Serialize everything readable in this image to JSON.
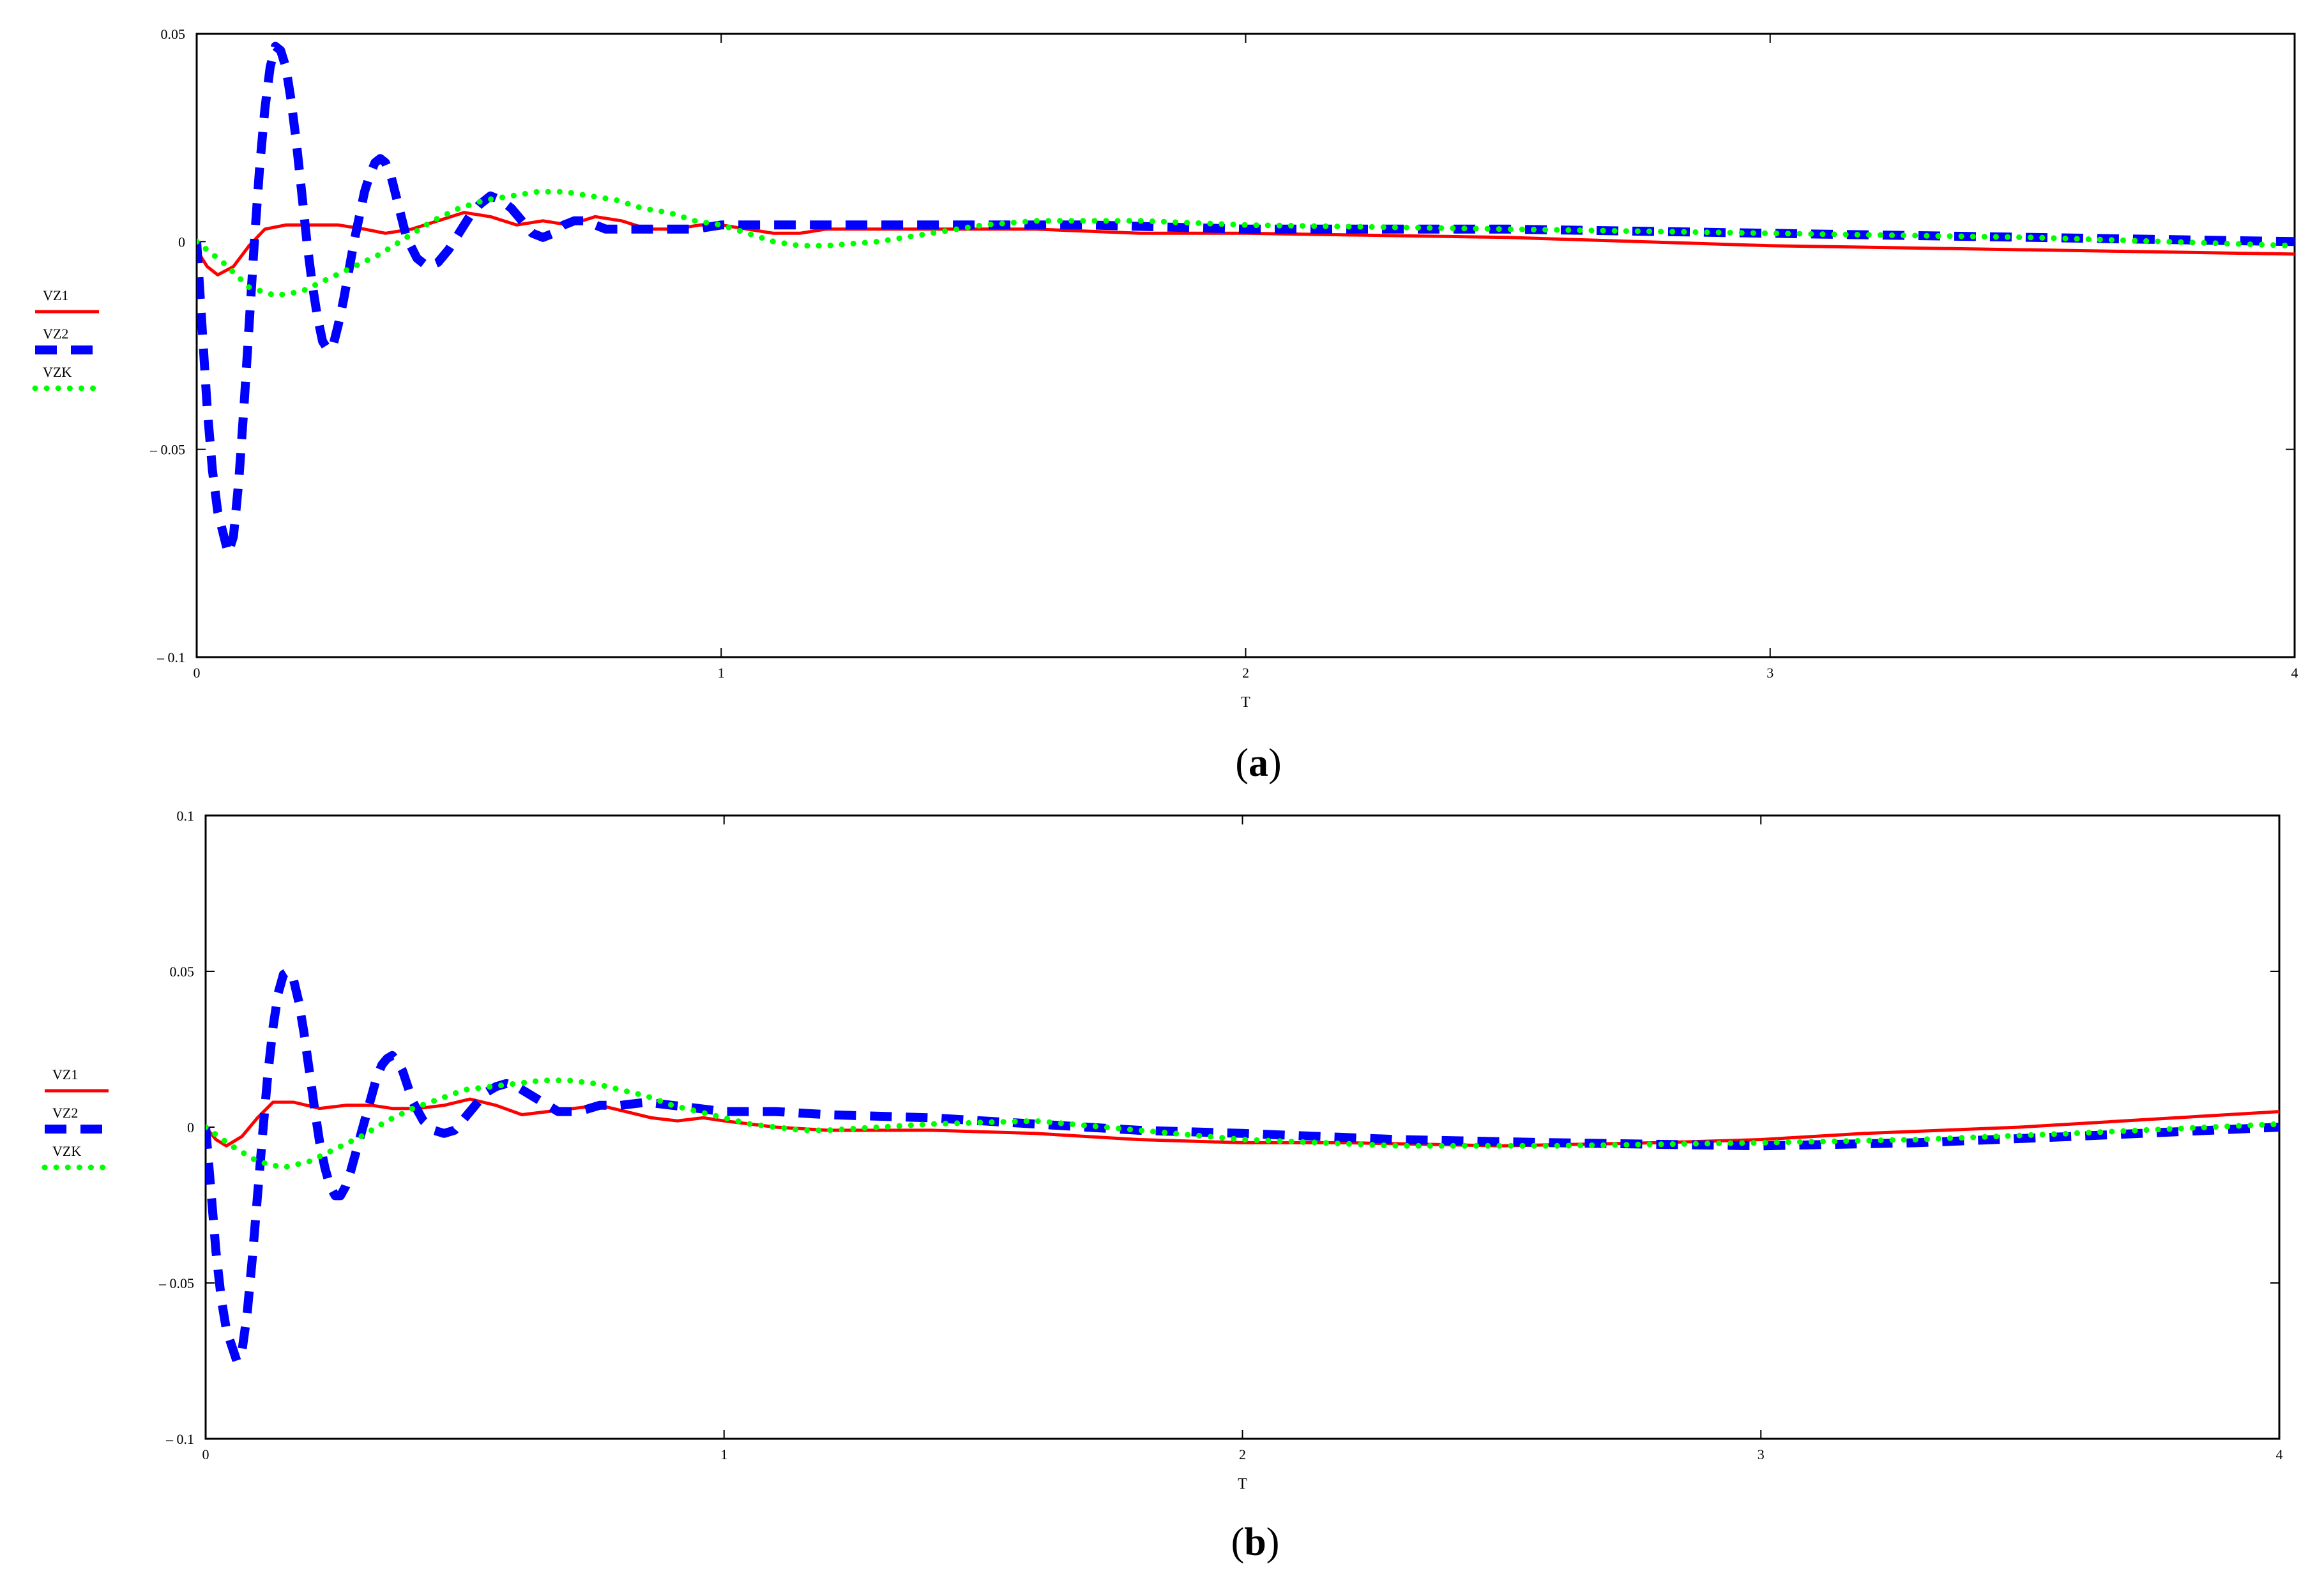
{
  "chart_data": [
    {
      "type": "line",
      "panel_label": "a",
      "xlabel": "T",
      "ylabel": "",
      "xlim": [
        0,
        4
      ],
      "ylim": [
        -0.1,
        0.05
      ],
      "x_ticks": [
        "0",
        "1",
        "2",
        "3",
        "4"
      ],
      "y_ticks": [
        {
          "value": 0.05,
          "label": "0.05"
        },
        {
          "value": 0,
          "label": "0"
        },
        {
          "value": -0.05,
          "label": "–  0.05"
        },
        {
          "value": -0.1,
          "label": "–  0.1"
        }
      ],
      "legend_position": "left",
      "series": [
        {
          "name": "VZ1",
          "color": "#ff0000",
          "style": "solid",
          "x": [
            0,
            0.02,
            0.04,
            0.07,
            0.1,
            0.13,
            0.17,
            0.22,
            0.27,
            0.32,
            0.36,
            0.41,
            0.46,
            0.51,
            0.56,
            0.61,
            0.66,
            0.71,
            0.76,
            0.81,
            0.86,
            0.91,
            0.96,
            1.0,
            1.05,
            1.1,
            1.15,
            1.2,
            1.3,
            1.4,
            1.5,
            1.6,
            1.8,
            2.0,
            2.5,
            3.0,
            3.5,
            4.0
          ],
          "y": [
            -0.002,
            -0.006,
            -0.008,
            -0.006,
            -0.001,
            0.003,
            0.004,
            0.004,
            0.004,
            0.003,
            0.002,
            0.003,
            0.005,
            0.007,
            0.006,
            0.004,
            0.005,
            0.004,
            0.006,
            0.005,
            0.003,
            0.003,
            0.004,
            0.004,
            0.003,
            0.002,
            0.002,
            0.003,
            0.003,
            0.003,
            0.003,
            0.003,
            0.002,
            0.002,
            0.001,
            -0.001,
            -0.002,
            -0.003
          ]
        },
        {
          "name": "VZ2",
          "color": "#0000ff",
          "style": "dashed",
          "x": [
            0,
            0.01,
            0.02,
            0.03,
            0.04,
            0.05,
            0.06,
            0.07,
            0.08,
            0.09,
            0.1,
            0.11,
            0.12,
            0.13,
            0.14,
            0.15,
            0.16,
            0.17,
            0.18,
            0.19,
            0.2,
            0.21,
            0.22,
            0.23,
            0.24,
            0.25,
            0.26,
            0.27,
            0.28,
            0.29,
            0.3,
            0.31,
            0.32,
            0.33,
            0.34,
            0.35,
            0.36,
            0.37,
            0.38,
            0.39,
            0.4,
            0.42,
            0.44,
            0.46,
            0.48,
            0.5,
            0.52,
            0.54,
            0.56,
            0.58,
            0.6,
            0.62,
            0.64,
            0.66,
            0.68,
            0.7,
            0.72,
            0.74,
            0.76,
            0.78,
            0.8,
            0.85,
            0.9,
            0.95,
            1.0,
            1.1,
            1.2,
            1.3,
            1.5,
            1.7,
            2.0,
            2.5,
            3.0,
            3.5,
            4.0
          ],
          "y": [
            0,
            -0.02,
            -0.04,
            -0.055,
            -0.065,
            -0.07,
            -0.075,
            -0.071,
            -0.058,
            -0.04,
            -0.02,
            0.0,
            0.018,
            0.032,
            0.042,
            0.047,
            0.046,
            0.042,
            0.034,
            0.024,
            0.012,
            0.0,
            -0.01,
            -0.018,
            -0.024,
            -0.026,
            -0.025,
            -0.02,
            -0.014,
            -0.007,
            0.0,
            0.006,
            0.012,
            0.016,
            0.019,
            0.02,
            0.019,
            0.016,
            0.011,
            0.006,
            0.001,
            -0.004,
            -0.006,
            -0.005,
            -0.002,
            0.002,
            0.006,
            0.009,
            0.011,
            0.01,
            0.008,
            0.005,
            0.002,
            0.001,
            0.002,
            0.004,
            0.005,
            0.005,
            0.004,
            0.003,
            0.003,
            0.003,
            0.003,
            0.003,
            0.004,
            0.004,
            0.004,
            0.004,
            0.004,
            0.004,
            0.003,
            0.003,
            0.002,
            0.001,
            0.0
          ]
        },
        {
          "name": "VZK",
          "color": "#00ff00",
          "style": "dotted",
          "x": [
            0,
            0.05,
            0.1,
            0.15,
            0.2,
            0.25,
            0.3,
            0.35,
            0.4,
            0.45,
            0.5,
            0.55,
            0.6,
            0.65,
            0.7,
            0.75,
            0.8,
            0.85,
            0.9,
            0.95,
            1.0,
            1.05,
            1.1,
            1.15,
            1.2,
            1.3,
            1.4,
            1.5,
            1.6,
            1.7,
            1.8,
            2.0,
            2.5,
            3.0,
            3.5,
            4.0
          ],
          "y": [
            0,
            -0.005,
            -0.011,
            -0.013,
            -0.012,
            -0.009,
            -0.006,
            -0.003,
            0.001,
            0.005,
            0.008,
            0.01,
            0.011,
            0.012,
            0.012,
            0.011,
            0.01,
            0.008,
            0.007,
            0.005,
            0.004,
            0.002,
            0.0,
            -0.001,
            -0.001,
            0.0,
            0.002,
            0.004,
            0.005,
            0.005,
            0.005,
            0.004,
            0.003,
            0.002,
            0.001,
            -0.001
          ]
        }
      ]
    },
    {
      "type": "line",
      "panel_label": "b",
      "xlabel": "T",
      "ylabel": "",
      "xlim": [
        0,
        4
      ],
      "ylim": [
        -0.1,
        0.1
      ],
      "x_ticks": [
        "0",
        "1",
        "2",
        "3",
        "4"
      ],
      "y_ticks": [
        {
          "value": 0.1,
          "label": "0.1"
        },
        {
          "value": 0.05,
          "label": "0.05"
        },
        {
          "value": 0,
          "label": "0"
        },
        {
          "value": -0.05,
          "label": "–  0.05"
        },
        {
          "value": -0.1,
          "label": "–  0.1"
        }
      ],
      "legend_position": "left",
      "series": [
        {
          "name": "VZ1",
          "color": "#ff0000",
          "style": "solid",
          "x": [
            0,
            0.02,
            0.04,
            0.07,
            0.1,
            0.13,
            0.17,
            0.22,
            0.27,
            0.32,
            0.36,
            0.41,
            0.46,
            0.51,
            0.56,
            0.61,
            0.66,
            0.71,
            0.76,
            0.81,
            0.86,
            0.91,
            0.96,
            1.0,
            1.05,
            1.1,
            1.2,
            1.4,
            1.6,
            1.8,
            2.0,
            2.2,
            2.5,
            2.8,
            3.0,
            3.2,
            3.5,
            3.8,
            4.0
          ],
          "y": [
            0,
            -0.004,
            -0.006,
            -0.003,
            0.003,
            0.008,
            0.008,
            0.006,
            0.007,
            0.007,
            0.006,
            0.006,
            0.007,
            0.009,
            0.007,
            0.004,
            0.005,
            0.006,
            0.007,
            0.005,
            0.003,
            0.002,
            0.003,
            0.002,
            0.001,
            0.0,
            -0.001,
            -0.001,
            -0.002,
            -0.004,
            -0.005,
            -0.005,
            -0.006,
            -0.005,
            -0.004,
            -0.002,
            0.0,
            0.003,
            0.005
          ]
        },
        {
          "name": "VZ2",
          "color": "#0000ff",
          "style": "dashed",
          "x": [
            0,
            0.01,
            0.02,
            0.03,
            0.04,
            0.05,
            0.06,
            0.07,
            0.08,
            0.09,
            0.1,
            0.11,
            0.12,
            0.13,
            0.14,
            0.15,
            0.16,
            0.17,
            0.18,
            0.19,
            0.2,
            0.21,
            0.22,
            0.23,
            0.24,
            0.25,
            0.26,
            0.27,
            0.28,
            0.29,
            0.3,
            0.31,
            0.32,
            0.33,
            0.34,
            0.35,
            0.36,
            0.37,
            0.38,
            0.39,
            0.4,
            0.42,
            0.44,
            0.46,
            0.48,
            0.5,
            0.52,
            0.54,
            0.56,
            0.58,
            0.6,
            0.62,
            0.64,
            0.66,
            0.68,
            0.7,
            0.72,
            0.74,
            0.76,
            0.78,
            0.8,
            0.85,
            0.9,
            0.95,
            1.0,
            1.1,
            1.2,
            1.4,
            1.6,
            1.8,
            2.0,
            2.3,
            2.6,
            3.0,
            3.3,
            3.6,
            4.0
          ],
          "y": [
            0,
            -0.02,
            -0.04,
            -0.055,
            -0.065,
            -0.07,
            -0.075,
            -0.072,
            -0.06,
            -0.042,
            -0.022,
            -0.002,
            0.017,
            0.032,
            0.043,
            0.049,
            0.05,
            0.047,
            0.04,
            0.03,
            0.018,
            0.006,
            -0.005,
            -0.013,
            -0.019,
            -0.022,
            -0.022,
            -0.019,
            -0.014,
            -0.008,
            -0.002,
            0.004,
            0.01,
            0.016,
            0.02,
            0.022,
            0.023,
            0.021,
            0.018,
            0.013,
            0.008,
            0.002,
            -0.001,
            -0.002,
            -0.001,
            0.003,
            0.007,
            0.011,
            0.013,
            0.014,
            0.013,
            0.011,
            0.009,
            0.007,
            0.005,
            0.005,
            0.005,
            0.006,
            0.007,
            0.007,
            0.007,
            0.008,
            0.007,
            0.006,
            0.005,
            0.005,
            0.004,
            0.003,
            0.001,
            -0.001,
            -0.002,
            -0.004,
            -0.005,
            -0.006,
            -0.005,
            -0.003,
            0.0
          ]
        },
        {
          "name": "VZK",
          "color": "#00ff00",
          "style": "dotted",
          "x": [
            0,
            0.05,
            0.1,
            0.15,
            0.2,
            0.25,
            0.3,
            0.35,
            0.4,
            0.45,
            0.5,
            0.55,
            0.6,
            0.65,
            0.7,
            0.75,
            0.8,
            0.85,
            0.9,
            0.95,
            1.0,
            1.05,
            1.1,
            1.15,
            1.2,
            1.3,
            1.4,
            1.6,
            1.8,
            2.0,
            2.3,
            2.6,
            3.0,
            3.3,
            3.6,
            4.0
          ],
          "y": [
            0,
            -0.006,
            -0.011,
            -0.013,
            -0.011,
            -0.007,
            -0.003,
            0.002,
            0.006,
            0.009,
            0.012,
            0.013,
            0.014,
            0.015,
            0.015,
            0.014,
            0.012,
            0.01,
            0.007,
            0.005,
            0.003,
            0.001,
            0.0,
            -0.001,
            -0.001,
            0.0,
            0.001,
            0.002,
            -0.001,
            -0.004,
            -0.006,
            -0.006,
            -0.005,
            -0.004,
            -0.002,
            0.001
          ]
        }
      ]
    }
  ]
}
